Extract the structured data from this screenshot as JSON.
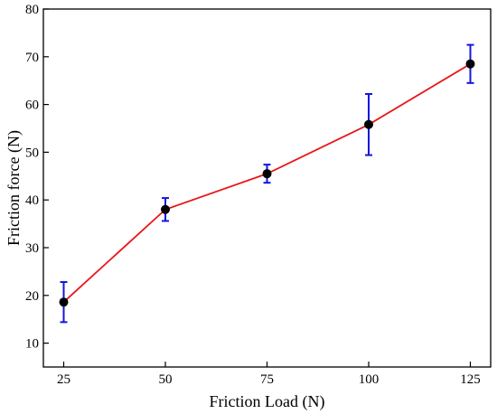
{
  "chart_data": {
    "type": "line",
    "title": "",
    "xlabel": "Friction Load (N)",
    "ylabel": "Friction force (N)",
    "x": [
      25,
      50,
      75,
      100,
      125
    ],
    "xticks": [
      25,
      50,
      75,
      100,
      125
    ],
    "yticks": [
      10,
      20,
      30,
      40,
      50,
      60,
      70,
      80
    ],
    "xlim": [
      20,
      130
    ],
    "ylim": [
      5,
      80
    ],
    "grid": false,
    "series": [
      {
        "values": [
          18.6,
          38.0,
          45.5,
          55.8,
          68.5
        ],
        "error": [
          4.2,
          2.4,
          1.9,
          6.4,
          4.0
        ],
        "line_color": "#e8161a",
        "marker_color": "#000000",
        "error_color": "#1414e0"
      }
    ]
  }
}
